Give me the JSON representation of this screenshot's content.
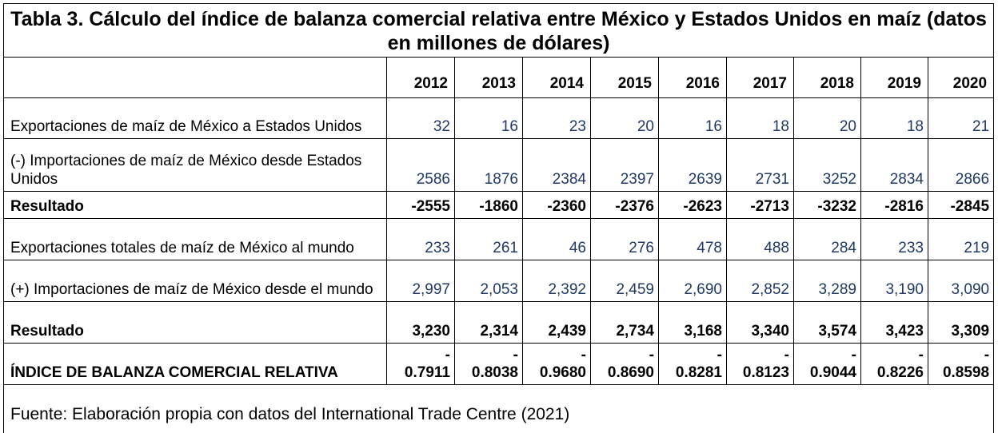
{
  "title": "Tabla 3. Cálculo del índice de balanza comercial relativa entre México y Estados Unidos en maíz (datos en millones de dólares)",
  "years": [
    "2012",
    "2013",
    "2014",
    "2015",
    "2016",
    "2017",
    "2018",
    "2019",
    "2020"
  ],
  "rows": [
    {
      "label": "Exportaciones de maíz de México a Estados Unidos",
      "values": [
        "32",
        "16",
        "23",
        "20",
        "16",
        "18",
        "20",
        "18",
        "21"
      ]
    },
    {
      "label": "(-) Importaciones de maíz de México desde Estados Unidos",
      "values": [
        "2586",
        "1876",
        "2384",
        "2397",
        "2639",
        "2731",
        "3252",
        "2834",
        "2866"
      ]
    },
    {
      "label": "Resultado",
      "values": [
        "-2555",
        "-1860",
        "-2360",
        "-2376",
        "-2623",
        "-2713",
        "-3232",
        "-2816",
        "-2845"
      ]
    },
    {
      "label": "Exportaciones totales de maíz de México al mundo",
      "values": [
        "233",
        "261",
        "46",
        "276",
        "478",
        "488",
        "284",
        "233",
        "219"
      ]
    },
    {
      "label": "(+) Importaciones de maíz de México desde el mundo",
      "values": [
        "2,997",
        "2,053",
        "2,392",
        "2,459",
        "2,690",
        "2,852",
        "3,289",
        "3,190",
        "3,090"
      ]
    },
    {
      "label": "Resultado",
      "values": [
        "3,230",
        "2,314",
        "2,439",
        "2,734",
        "3,168",
        "3,340",
        "3,574",
        "3,423",
        "3,309"
      ]
    }
  ],
  "index_row": {
    "label": "ÍNDICE DE BALANZA COMERCIAL RELATIVA",
    "sign": "-",
    "values": [
      "0.7911",
      "0.8038",
      "0.9680",
      "0.8690",
      "0.8281",
      "0.8123",
      "0.9044",
      "0.8226",
      "0.8598"
    ]
  },
  "source": "Fuente: Elaboración propia con datos del International Trade Centre (2021)"
}
